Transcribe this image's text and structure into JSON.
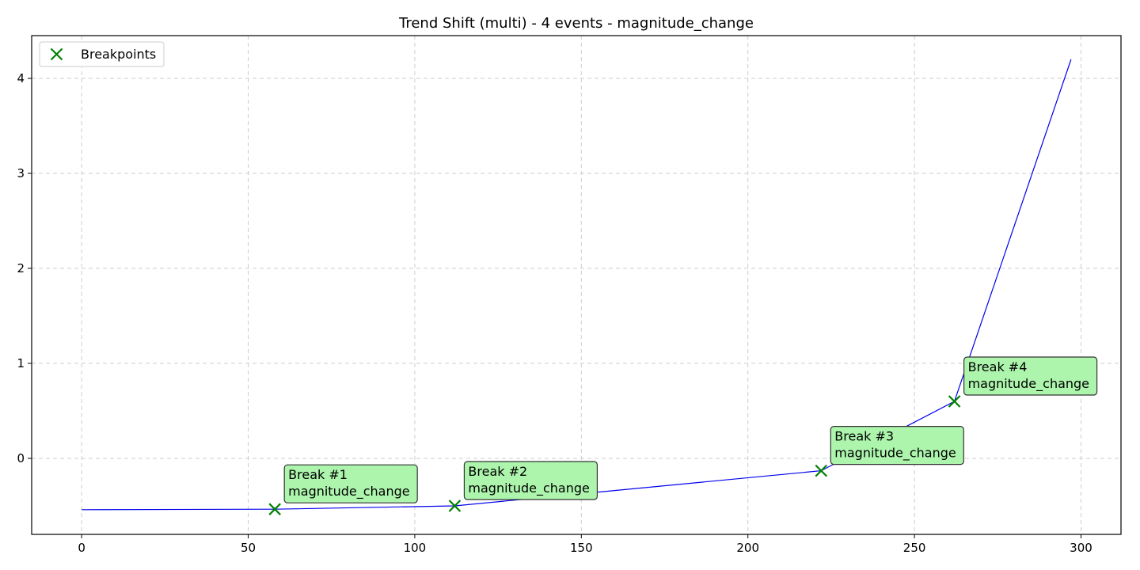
{
  "chart_data": {
    "type": "line",
    "title": "Trend Shift (multi) - 4 events - magnitude_change",
    "xlabel": "",
    "ylabel": "",
    "xlim": [
      -15,
      312
    ],
    "ylim": [
      -0.8,
      4.45
    ],
    "xticks": [
      0,
      50,
      100,
      150,
      200,
      250,
      300
    ],
    "yticks": [
      0,
      1,
      2,
      3,
      4
    ],
    "grid": true,
    "legend": {
      "placement": "top-left",
      "entries": [
        "Breakpoints"
      ]
    },
    "colors": {
      "series": "#0000ee",
      "breakpoints": "#008000",
      "annotation_fill": "#adf5ad"
    },
    "series": [
      {
        "x": [
          0,
          58,
          112,
          222,
          262,
          297
        ],
        "y": [
          -0.54,
          -0.535,
          -0.5,
          -0.13,
          0.6,
          4.2
        ]
      }
    ],
    "breakpoints": {
      "name": "Breakpoints",
      "points": [
        {
          "x": 58,
          "y": -0.535,
          "label": "Break #1",
          "sublabel": "magnitude_change"
        },
        {
          "x": 112,
          "y": -0.5,
          "label": "Break #2",
          "sublabel": "magnitude_change"
        },
        {
          "x": 222,
          "y": -0.13,
          "label": "Break #3",
          "sublabel": "magnitude_change"
        },
        {
          "x": 262,
          "y": 0.6,
          "label": "Break #4",
          "sublabel": "magnitude_change"
        }
      ]
    }
  }
}
